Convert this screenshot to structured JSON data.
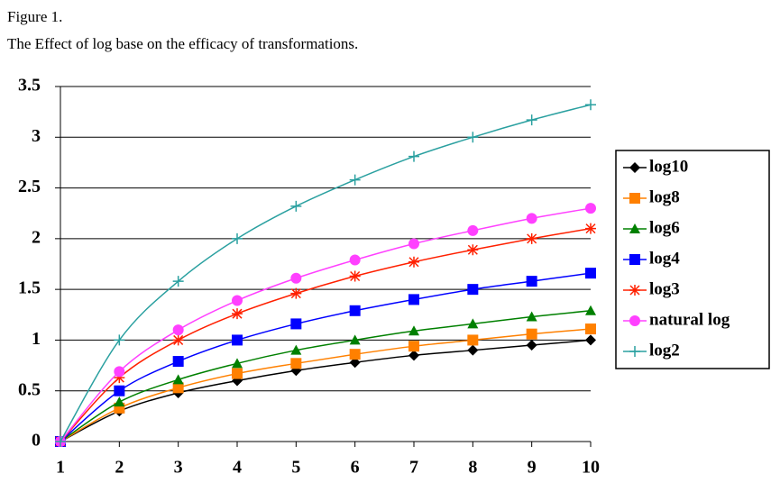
{
  "chart_data": {
    "type": "line",
    "title": "Figure 1.",
    "subtitle": "The Effect of log base on the efficacy of transformations.",
    "x": [
      1,
      2,
      3,
      4,
      5,
      6,
      7,
      8,
      9,
      10
    ],
    "xlim": [
      1,
      10
    ],
    "xticks": [
      1,
      2,
      3,
      4,
      5,
      6,
      7,
      8,
      9,
      10
    ],
    "ylim": [
      0,
      3.5
    ],
    "yticks": [
      0,
      0.5,
      1,
      1.5,
      2,
      2.5,
      3,
      3.5
    ],
    "grid": true,
    "legend": "right",
    "series": [
      {
        "name": "log10",
        "color": "#000000",
        "marker": "diamond",
        "values": [
          0,
          0.3,
          0.48,
          0.6,
          0.7,
          0.78,
          0.85,
          0.9,
          0.95,
          1.0
        ]
      },
      {
        "name": "log8",
        "color": "#ff8000",
        "marker": "square",
        "values": [
          0,
          0.33,
          0.53,
          0.67,
          0.77,
          0.86,
          0.94,
          1.0,
          1.06,
          1.11
        ]
      },
      {
        "name": "log6",
        "color": "#008000",
        "marker": "triangle",
        "values": [
          0,
          0.39,
          0.61,
          0.77,
          0.9,
          1.0,
          1.09,
          1.16,
          1.23,
          1.29
        ]
      },
      {
        "name": "log4",
        "color": "#0000ff",
        "marker": "square",
        "values": [
          0,
          0.5,
          0.79,
          1.0,
          1.16,
          1.29,
          1.4,
          1.5,
          1.58,
          1.66
        ]
      },
      {
        "name": "log3",
        "color": "#ff2000",
        "marker": "star",
        "values": [
          0,
          0.63,
          1.0,
          1.26,
          1.46,
          1.63,
          1.77,
          1.89,
          2.0,
          2.1
        ]
      },
      {
        "name": "natural log",
        "color": "#ff40ff",
        "marker": "circle",
        "values": [
          0,
          0.69,
          1.1,
          1.39,
          1.61,
          1.79,
          1.95,
          2.08,
          2.2,
          2.3
        ]
      },
      {
        "name": "log2",
        "color": "#2aa0a0",
        "marker": "plus",
        "values": [
          0,
          1.0,
          1.58,
          2.0,
          2.32,
          2.58,
          2.81,
          3.0,
          3.17,
          3.32
        ]
      }
    ]
  }
}
